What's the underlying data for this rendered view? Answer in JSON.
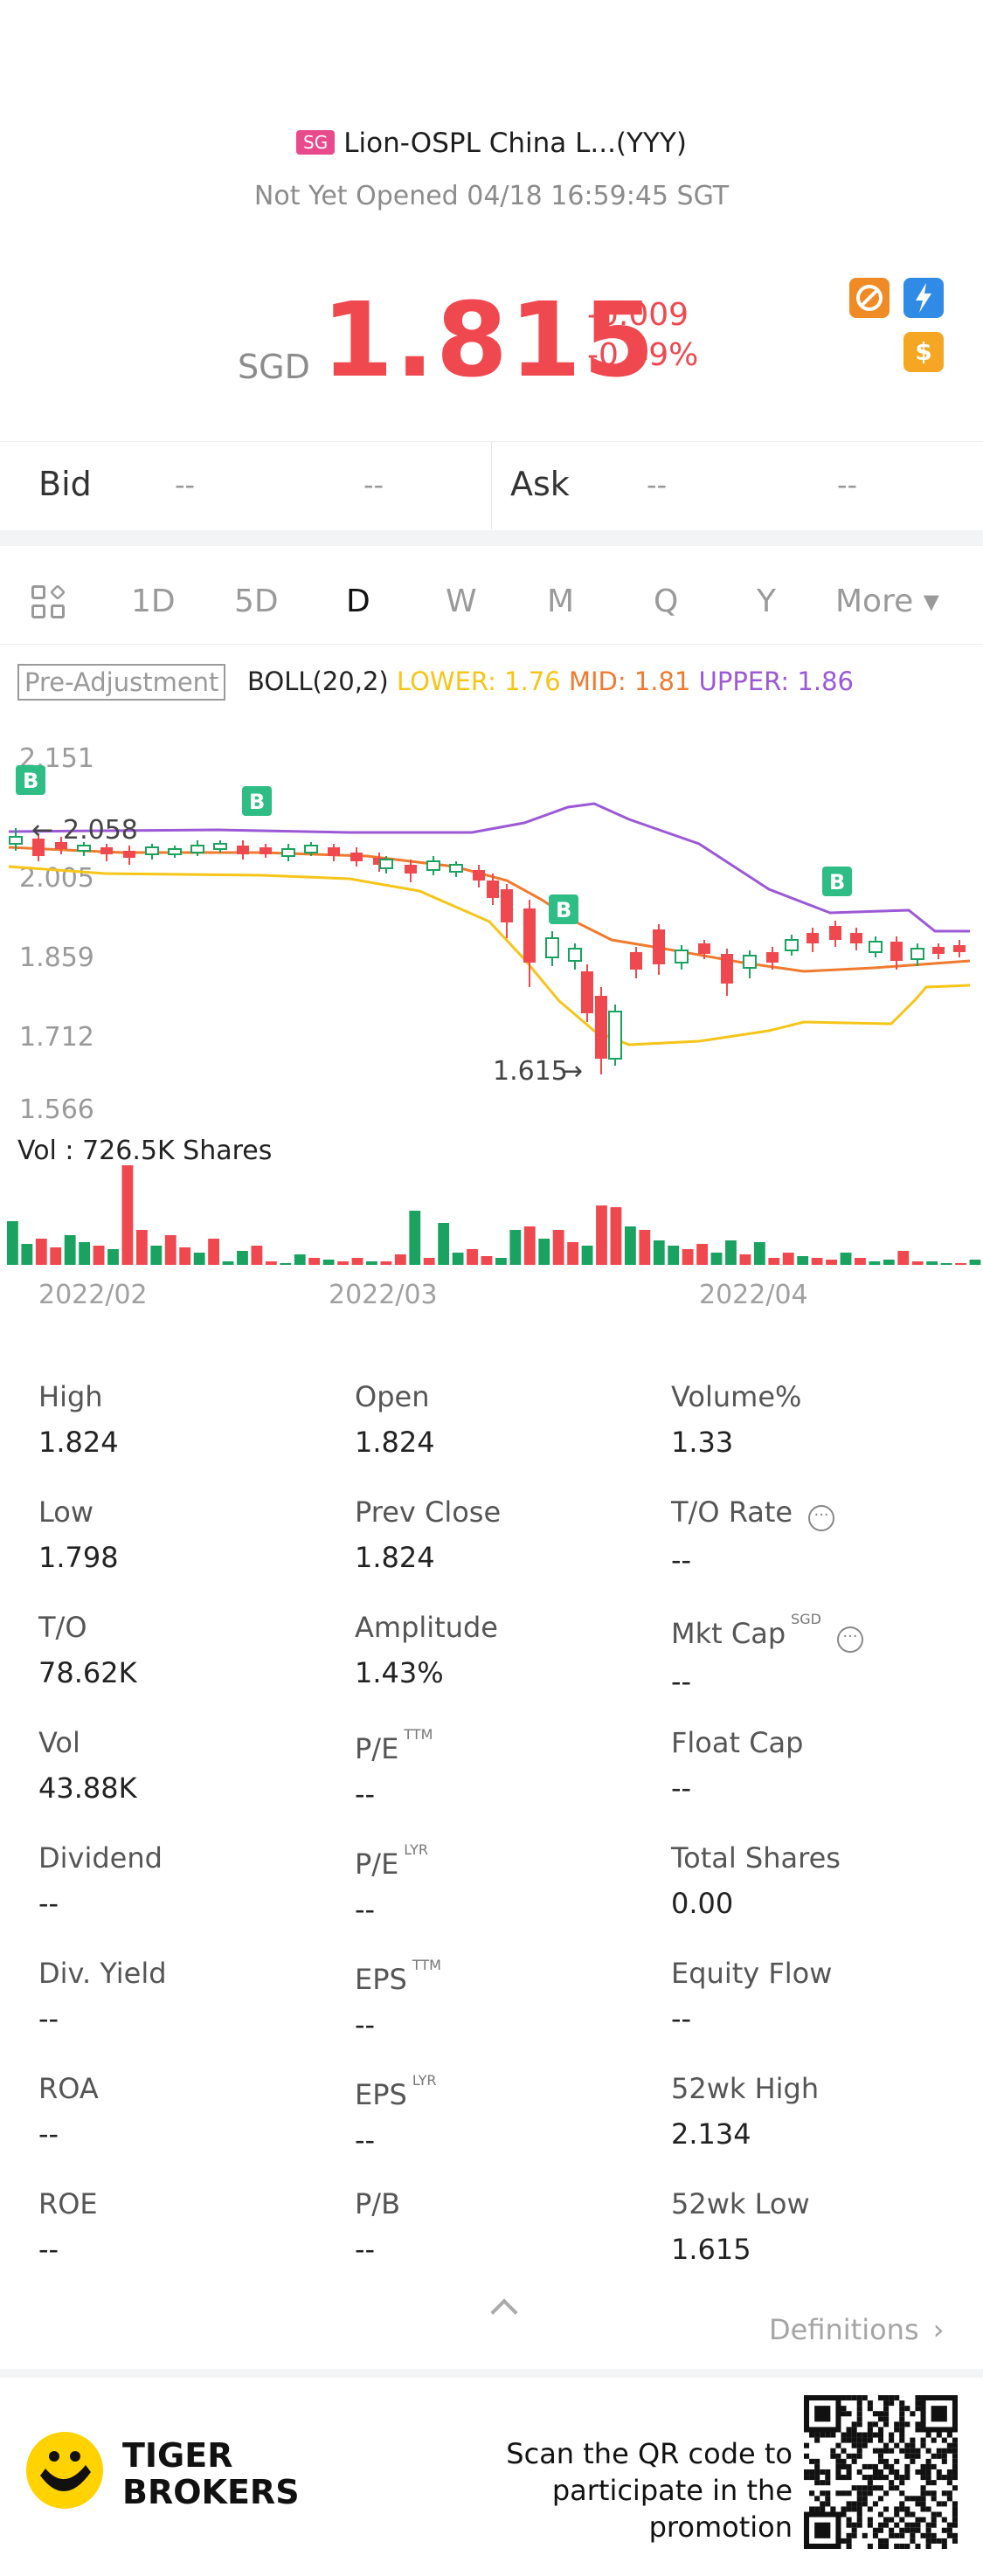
{
  "header": {
    "market_badge": "SG",
    "stock_name": "Lion-OSPL China L...(YYY)",
    "status_line": "Not Yet Opened 04/18 16:59:45 SGT"
  },
  "quote": {
    "currency": "SGD",
    "price": "1.815",
    "change": "-0.009",
    "change_pct": "-0.49%"
  },
  "bid_ask": {
    "bid_label": "Bid",
    "bid_price": "--",
    "bid_size": "--",
    "ask_label": "Ask",
    "ask_price": "--",
    "ask_size": "--"
  },
  "period_tabs": [
    "1D",
    "5D",
    "D",
    "W",
    "M",
    "Q",
    "Y",
    "More ▾"
  ],
  "active_tab": "D",
  "indicator": {
    "adjust_label": "Pre-Adjustment",
    "boll": "BOLL(20,2)",
    "lower": "LOWER: 1.76",
    "mid": "MID: 1.81",
    "upper": "UPPER: 1.86"
  },
  "chart_labels": {
    "y_ticks": [
      "2.151",
      "2.005",
      "1.859",
      "1.712",
      "1.566"
    ],
    "high_marker": "2.058",
    "low_marker": "1.615",
    "volume": "Vol  : 726.5K Shares",
    "months": [
      "2022/02",
      "2022/03",
      "2022/04"
    ]
  },
  "stats": [
    {
      "label": "High",
      "sup": "",
      "value": "1.824"
    },
    {
      "label": "Open",
      "sup": "",
      "value": "1.824"
    },
    {
      "label": "Volume%",
      "sup": "",
      "value": "1.33"
    },
    {
      "label": "Low",
      "sup": "",
      "value": "1.798"
    },
    {
      "label": "Prev Close",
      "sup": "",
      "value": "1.824"
    },
    {
      "label": "T/O Rate",
      "sup": "",
      "value": "--"
    },
    {
      "label": "T/O",
      "sup": "",
      "value": "78.62K"
    },
    {
      "label": "Amplitude",
      "sup": "",
      "value": "1.43%"
    },
    {
      "label": "Mkt Cap",
      "sup": "SGD",
      "value": "--"
    },
    {
      "label": "Vol",
      "sup": "",
      "value": "43.88K"
    },
    {
      "label": "P/E",
      "sup": "TTM",
      "value": "--"
    },
    {
      "label": "Float Cap",
      "sup": "",
      "value": "--"
    },
    {
      "label": "Dividend",
      "sup": "",
      "value": "--"
    },
    {
      "label": "P/E",
      "sup": "LYR",
      "value": "--"
    },
    {
      "label": "Total Shares",
      "sup": "",
      "value": "0.00"
    },
    {
      "label": "Div. Yield",
      "sup": "",
      "value": "--"
    },
    {
      "label": "EPS",
      "sup": "TTM",
      "value": "--"
    },
    {
      "label": "Equity Flow",
      "sup": "",
      "value": "--"
    },
    {
      "label": "ROA",
      "sup": "",
      "value": "--"
    },
    {
      "label": "EPS",
      "sup": "LYR",
      "value": "--"
    },
    {
      "label": "52wk High",
      "sup": "",
      "value": "2.134"
    },
    {
      "label": "ROE",
      "sup": "",
      "value": "--"
    },
    {
      "label": "P/B",
      "sup": "",
      "value": "--"
    },
    {
      "label": "52wk Low",
      "sup": "",
      "value": "1.615"
    }
  ],
  "definitions_label": "Definitions",
  "footer": {
    "brand_line1": "TIGER",
    "brand_line2": "BROKERS",
    "promo_line1": "Scan the QR code to",
    "promo_line2": "participate in the promotion"
  },
  "colors": {
    "up": "#f0484f",
    "down": "#1aa260",
    "lower_band": "#f5c518",
    "mid_band": "#f07a2e",
    "upper_band": "#9b59d6",
    "brand_yellow": "#ffd200"
  }
}
